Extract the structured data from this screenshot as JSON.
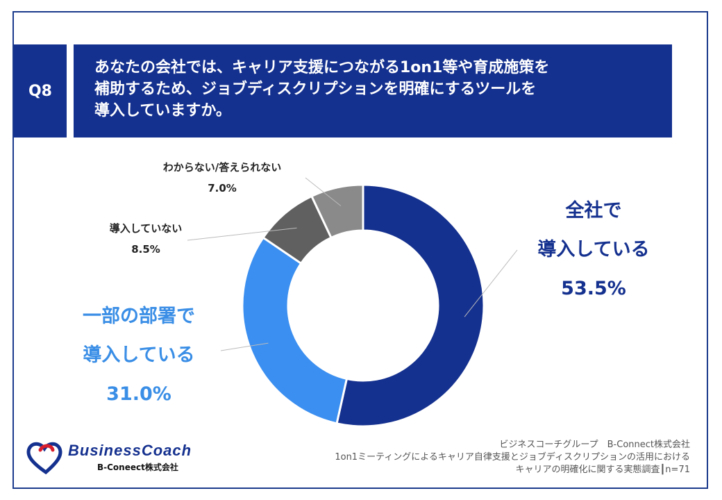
{
  "header": {
    "q_label": "Q8",
    "title_lines": [
      "あなたの会社では、キャリア支援につながる1on1等や育成施策を",
      "補助するため、ジョブディスクリプションを明確にするツールを",
      "導入していますか。"
    ]
  },
  "chart_data": {
    "type": "pie",
    "donut": true,
    "start": "12 o'clock, clockwise",
    "slices": [
      {
        "label_lines": [
          "全社で",
          "導入している"
        ],
        "value": 53.5,
        "value_text": "53.5%",
        "color": "#15318f"
      },
      {
        "label_lines": [
          "一部の部署で",
          "導入している"
        ],
        "value": 31.0,
        "value_text": "31.0%",
        "color": "#3b8ff0"
      },
      {
        "label_lines": [
          "導入していない"
        ],
        "value": 8.5,
        "value_text": "8.5%",
        "color": "#606060"
      },
      {
        "label_lines": [
          "わからない/答えられない"
        ],
        "value": 7.0,
        "value_text": "7.0%",
        "color": "#8a8a8a"
      }
    ]
  },
  "footer": {
    "source_lines": [
      "ビジネスコーチグループ　B-Connect株式会社",
      "1on1ミーティングによるキャリア自律支援とジョブディスクリプションの活用における",
      "キャリアの明確化に関する実態調査┃n=71"
    ],
    "logo_text": "BusinessCoach",
    "logo_sub": "B-Coneect株式会社"
  },
  "colors": {
    "brand": "#15318f",
    "accent": "#3b8ff0",
    "label_dark": "#15318f",
    "label_light": "#3a8ee6"
  }
}
